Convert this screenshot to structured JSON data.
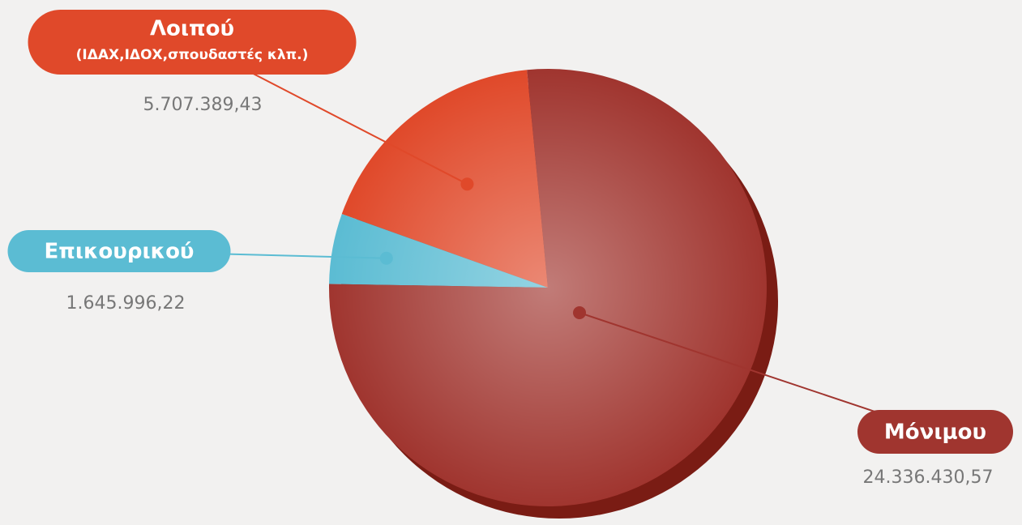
{
  "chart_data": {
    "type": "pie",
    "categories": [
      "Λοιπού",
      "Επικουρικού",
      "Μόνιμου"
    ],
    "annotations": [
      "(ΙΔΑΧ,ΙΔΟΧ,σπουδαστές κλπ.)"
    ],
    "values": [
      5707389.43,
      1645996.22,
      24336430.57
    ],
    "value_labels": [
      "5.707.389,43",
      "1.645.996,22",
      "24.336.430,57"
    ],
    "colors": [
      "#e0492a",
      "#5bbcd3",
      "#a0352f"
    ]
  }
}
